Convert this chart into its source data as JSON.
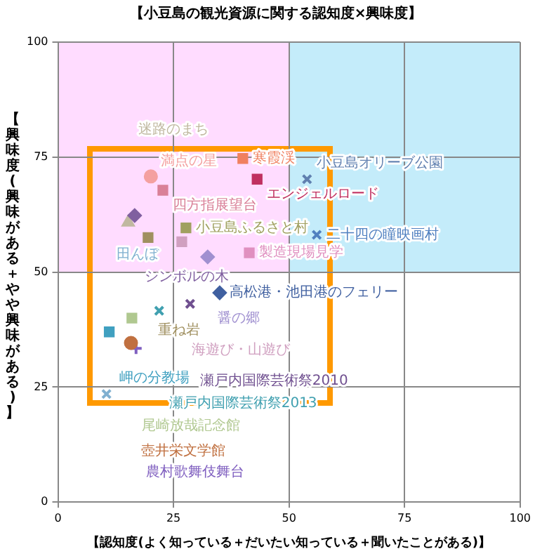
{
  "chart_data": {
    "type": "scatter",
    "title": "【小豆島の観光資源に関する認知度×興味度】",
    "xlabel": "【認知度(よく知っている＋だいたい知っている＋聞いたことがある)】",
    "ylabel": "【興味度(興味がある＋やや興味がある)】",
    "xlim": [
      0,
      100
    ],
    "ylim": [
      0,
      100
    ],
    "xticks": [
      0,
      25,
      50,
      75,
      100
    ],
    "yticks": [
      0,
      25,
      50,
      75,
      100
    ],
    "grid": true,
    "series": [
      {
        "name": "満点の星",
        "color": "#f4a0a0",
        "marker": "circle",
        "x": [
          20.1
        ],
        "values": [
          70.8
        ]
      },
      {
        "name": "四方指展望台",
        "color": "#d98098",
        "marker": "square",
        "x": [
          22.7
        ],
        "values": [
          67.8
        ]
      },
      {
        "name": "寒霞渓",
        "color": "#f08060",
        "marker": "square",
        "x": [
          40
        ],
        "values": [
          74.7
        ]
      },
      {
        "name": "エンジェルロード",
        "color": "#c03060",
        "marker": "square",
        "x": [
          43.1
        ],
        "values": [
          70.2
        ]
      },
      {
        "name": "小豆島オリーブ公園",
        "color": "#6080b0",
        "marker": "cross",
        "x": [
          53.9
        ],
        "values": [
          70.2
        ]
      },
      {
        "name": "二十四の瞳映画村",
        "color": "#5080c0",
        "marker": "cross",
        "x": [
          56
        ],
        "values": [
          58.1
        ]
      },
      {
        "name": "シンボルの木",
        "color": "#8060a0",
        "marker": "diamond",
        "x": [
          16.6
        ],
        "values": [
          62.3
        ]
      },
      {
        "name": "迷路のまち",
        "color": "#c0b8a0",
        "marker": "triangle",
        "x": [
          15.2
        ],
        "values": [
          60.8
        ]
      },
      {
        "name": "小豆島ふるさと村",
        "color": "#a0a060",
        "marker": "square",
        "x": [
          27.7
        ],
        "values": [
          59.6
        ]
      },
      {
        "name": "重ね岩",
        "color": "#a09060",
        "marker": "square",
        "x": [
          19.5
        ],
        "values": [
          57.5
        ]
      },
      {
        "name": "海遊び・山遊び",
        "color": "#d0a0c0",
        "marker": "square",
        "x": [
          26.8
        ],
        "values": [
          56.6
        ]
      },
      {
        "name": "醤の郷",
        "color": "#a090d0",
        "marker": "diamond",
        "x": [
          32.4
        ],
        "values": [
          53.3
        ]
      },
      {
        "name": "製造現場見学",
        "color": "#e090c0",
        "marker": "square",
        "x": [
          41.4
        ],
        "values": [
          54.2
        ]
      },
      {
        "name": "高松港・池田港のフェリー",
        "color": "#4060a0",
        "marker": "diamond",
        "x": [
          35
        ],
        "values": [
          45.5
        ]
      },
      {
        "name": "瀬戸内国際芸術祭2010",
        "color": "#705090",
        "marker": "cross",
        "x": [
          28.6
        ],
        "values": [
          43.1
        ]
      },
      {
        "name": "瀬戸内国際芸術祭2013",
        "color": "#40a0b0",
        "marker": "cross",
        "x": [
          21.9
        ],
        "values": [
          41.6
        ]
      },
      {
        "name": "尾崎放哉記念館",
        "color": "#b0c890",
        "marker": "square",
        "x": [
          16
        ],
        "values": [
          40
        ]
      },
      {
        "name": "岬の分教場",
        "color": "#40a0c0",
        "marker": "square",
        "x": [
          11.1
        ],
        "values": [
          37
        ]
      },
      {
        "name": "壺井栄文学館",
        "color": "#c07040",
        "marker": "circle",
        "x": [
          15.8
        ],
        "values": [
          34.6
        ]
      },
      {
        "name": "農村歌舞伎舞台",
        "color": "#8060c0",
        "marker": "plus",
        "x": [
          16.9
        ],
        "values": [
          33.4
        ]
      },
      {
        "name": "田んぼ",
        "color": "#80b0d0",
        "marker": "cross",
        "x": [
          10.5
        ],
        "values": [
          23.5
        ]
      }
    ]
  }
}
